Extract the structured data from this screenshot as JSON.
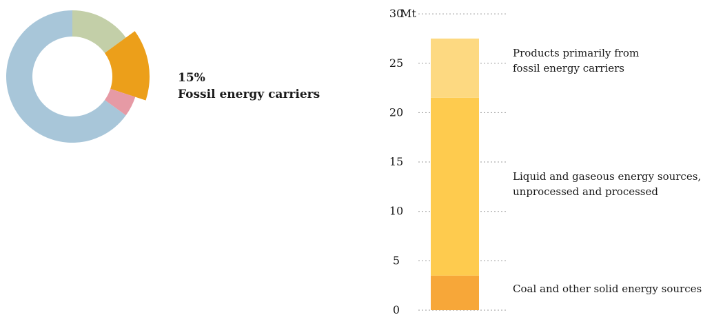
{
  "donut": {
    "callout_percent": "15%",
    "callout_label": "Fossil energy carriers",
    "segments": [
      {
        "name": "green",
        "share": 0.15,
        "color": "#c3cfa8",
        "highlight": false
      },
      {
        "name": "fossil-energy-carriers",
        "share": 0.15,
        "color": "#ec9f1a",
        "highlight": true
      },
      {
        "name": "pink",
        "share": 0.05,
        "color": "#e69aa5",
        "highlight": false
      },
      {
        "name": "blue",
        "share": 0.65,
        "color": "#a8c6d9",
        "highlight": false
      }
    ]
  },
  "chart_data": {
    "type": "bar",
    "stacked": true,
    "categories": [
      ""
    ],
    "unit": "Mt",
    "ylim": [
      0,
      30
    ],
    "yticks": [
      0,
      5,
      10,
      15,
      20,
      25,
      30
    ],
    "ytick_labels": [
      "0",
      "5",
      "10",
      "15",
      "20",
      "25",
      "30"
    ],
    "grid": true,
    "series": [
      {
        "name": "Coal and other solid energy sources",
        "values": [
          3.5
        ],
        "color": "#f7a739"
      },
      {
        "name": "Liquid and gaseous energy sources, unprocessed and processed",
        "values": [
          18.0
        ],
        "color": "#fecb4e"
      },
      {
        "name": "Products primarily from fossil energy carriers",
        "values": [
          6.0
        ],
        "color": "#fdd981"
      }
    ],
    "labels": {
      "top": [
        "Products primarily from",
        "fossil energy carriers"
      ],
      "middle": [
        "Liquid and gaseous energy sources,",
        "unprocessed and processed"
      ],
      "bottom": [
        "Coal and other solid energy sources"
      ]
    }
  }
}
